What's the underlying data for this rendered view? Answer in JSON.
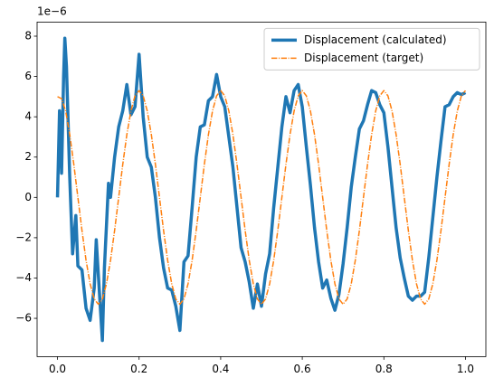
{
  "chart_data": {
    "type": "line",
    "y_offset_label": "1e−6",
    "xlim": [
      -0.05,
      1.05
    ],
    "ylim": [
      -7.9,
      8.7
    ],
    "xticks": [
      {
        "value": 0,
        "label": "0.0"
      },
      0.2,
      0.4,
      0.6,
      0.8,
      {
        "value": 1,
        "label": "1.0"
      }
    ],
    "yticks": [
      {
        "value": -6,
        "label": "−6"
      },
      {
        "value": -4,
        "label": "−4"
      },
      {
        "value": -2,
        "label": "−2"
      },
      0,
      2,
      4,
      6,
      8
    ],
    "legend": "upper right",
    "series": [
      {
        "name": "Displacement (calculated)",
        "color": "#1f77b4",
        "style": "solid",
        "x": [
          0,
          0.005,
          0.01,
          0.015,
          0.018,
          0.022,
          0.03,
          0.037,
          0.045,
          0.05,
          0.06,
          0.07,
          0.08,
          0.09,
          0.095,
          0.1,
          0.11,
          0.115,
          0.125,
          0.13,
          0.14,
          0.15,
          0.16,
          0.17,
          0.18,
          0.19,
          0.2,
          0.21,
          0.22,
          0.23,
          0.24,
          0.25,
          0.26,
          0.27,
          0.28,
          0.29,
          0.3,
          0.31,
          0.32,
          0.33,
          0.34,
          0.35,
          0.36,
          0.37,
          0.38,
          0.39,
          0.4,
          0.41,
          0.42,
          0.43,
          0.44,
          0.45,
          0.46,
          0.47,
          0.48,
          0.49,
          0.5,
          0.51,
          0.52,
          0.53,
          0.54,
          0.55,
          0.56,
          0.57,
          0.58,
          0.59,
          0.6,
          0.61,
          0.62,
          0.63,
          0.64,
          0.65,
          0.66,
          0.67,
          0.68,
          0.69,
          0.7,
          0.71,
          0.72,
          0.73,
          0.74,
          0.75,
          0.76,
          0.77,
          0.78,
          0.79,
          0.8,
          0.81,
          0.82,
          0.83,
          0.84,
          0.85,
          0.86,
          0.87,
          0.88,
          0.89,
          0.9,
          0.91,
          0.92,
          0.93,
          0.94,
          0.95,
          0.96,
          0.97,
          0.98,
          0.99,
          1.0
        ],
        "values": [
          0,
          4.3,
          1.2,
          6,
          7.9,
          6.5,
          1,
          -2.8,
          -0.9,
          -3.4,
          -3.6,
          -5.5,
          -6.1,
          -4.5,
          -2.1,
          -3.8,
          -7.1,
          -3.5,
          0.7,
          0,
          2,
          3.5,
          4.3,
          5.6,
          4.1,
          4.5,
          7.1,
          4,
          2,
          1.5,
          0,
          -2,
          -3.5,
          -4.5,
          -4.6,
          -5.4,
          -6.6,
          -3.2,
          -2.9,
          -0.5,
          2,
          3.5,
          3.6,
          4.8,
          5,
          6.1,
          5,
          4.5,
          3,
          1.5,
          -0.5,
          -2.5,
          -3.2,
          -4.2,
          -5.5,
          -4.3,
          -5.4,
          -3.8,
          -2.8,
          -0.5,
          1.5,
          3.5,
          5,
          4.2,
          5.3,
          5.6,
          4.5,
          2.5,
          0.6,
          -1.5,
          -3.2,
          -4.5,
          -4.1,
          -5,
          -5.6,
          -4.8,
          -3.3,
          -1.5,
          0.5,
          2,
          3.4,
          3.8,
          4.6,
          5.3,
          5.2,
          4.6,
          4.2,
          2.5,
          0.5,
          -1.5,
          -3,
          -4,
          -4.9,
          -5.1,
          -4.9,
          -4.9,
          -4.7,
          -3,
          -1,
          1,
          2.8,
          4.5,
          4.6,
          5,
          5.2,
          5.1,
          5.2
        ]
      },
      {
        "name": "Displacement (target)",
        "color": "#ff7f0e",
        "style": "dashdot",
        "x": [
          0,
          0.01,
          0.02,
          0.03,
          0.04,
          0.05,
          0.06,
          0.07,
          0.08,
          0.09,
          0.1,
          0.11,
          0.12,
          0.13,
          0.14,
          0.15,
          0.16,
          0.17,
          0.18,
          0.19,
          0.2,
          0.21,
          0.22,
          0.23,
          0.24,
          0.25,
          0.26,
          0.27,
          0.28,
          0.29,
          0.3,
          0.31,
          0.32,
          0.33,
          0.34,
          0.35,
          0.36,
          0.37,
          0.38,
          0.39,
          0.4,
          0.41,
          0.42,
          0.43,
          0.44,
          0.45,
          0.46,
          0.47,
          0.48,
          0.49,
          0.5,
          0.51,
          0.52,
          0.53,
          0.54,
          0.55,
          0.56,
          0.57,
          0.58,
          0.59,
          0.6,
          0.61,
          0.62,
          0.63,
          0.64,
          0.65,
          0.66,
          0.67,
          0.68,
          0.69,
          0.7,
          0.71,
          0.72,
          0.73,
          0.74,
          0.75,
          0.76,
          0.77,
          0.78,
          0.79,
          0.8,
          0.81,
          0.82,
          0.83,
          0.84,
          0.85,
          0.86,
          0.87,
          0.88,
          0.89,
          0.9,
          0.91,
          0.92,
          0.93,
          0.94,
          0.95,
          0.96,
          0.97,
          0.98,
          0.99,
          1.0
        ],
        "values": [
          5.0,
          4.9,
          4.29,
          3.12,
          1.64,
          0,
          -1.64,
          -3.12,
          -4.29,
          -5.04,
          -5.3,
          -5.04,
          -4.29,
          -3.12,
          -1.64,
          0,
          1.64,
          3.12,
          4.29,
          5.04,
          5.3,
          5.04,
          4.29,
          3.12,
          1.64,
          0,
          -1.64,
          -3.12,
          -4.29,
          -5.04,
          -5.3,
          -5.04,
          -4.29,
          -3.12,
          -1.64,
          0,
          1.64,
          3.12,
          4.29,
          5.04,
          5.3,
          5.04,
          4.29,
          3.12,
          1.64,
          0,
          -1.64,
          -3.12,
          -4.29,
          -5.04,
          -5.3,
          -5.04,
          -4.29,
          -3.12,
          -1.64,
          0,
          1.64,
          3.12,
          4.29,
          5.04,
          5.3,
          5.04,
          4.29,
          3.12,
          1.64,
          0,
          -1.64,
          -3.12,
          -4.29,
          -5.04,
          -5.3,
          -5.04,
          -4.29,
          -3.12,
          -1.64,
          0,
          1.64,
          3.12,
          4.29,
          5.04,
          5.3,
          5.04,
          4.29,
          3.12,
          1.64,
          0,
          -1.64,
          -3.12,
          -4.29,
          -5.04,
          -5.3,
          -5.04,
          -4.29,
          -3.12,
          -1.64,
          0,
          1.64,
          3.12,
          4.29,
          5.04,
          5.3
        ]
      }
    ]
  }
}
